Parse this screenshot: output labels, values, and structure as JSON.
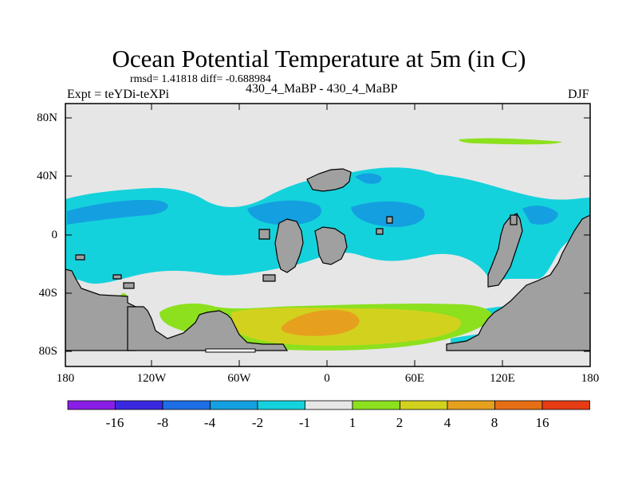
{
  "title": "Ocean Potential Temperature at 5m (in C)",
  "stats_line": "rmsd= 1.41818 diff= -0.688984",
  "left_subtitle": "Expt = teYDi-teXPi",
  "center_subtitle": "430_4_MaBP - 430_4_MaBP",
  "right_subtitle": "DJF",
  "lat_labels": [
    "80N",
    "40N",
    "0",
    "40S",
    "80S"
  ],
  "lon_labels": [
    "180",
    "120W",
    "60W",
    "0",
    "60E",
    "120E",
    "180"
  ],
  "colorbar": {
    "labels": [
      "-16",
      "-8",
      "-4",
      "-2",
      "-1",
      "1",
      "2",
      "4",
      "8",
      "16"
    ],
    "colors": [
      "#8a1ee6",
      "#3a28e0",
      "#1e6ee6",
      "#14a0e0",
      "#14d2dc",
      "#e6e6e6",
      "#8ce01e",
      "#d2d21e",
      "#e6a01e",
      "#e66e14",
      "#e63c14"
    ]
  },
  "land_color": "#a0a0a0",
  "colors": {
    "cyan": "#14d2dc",
    "blue": "#14a0e0",
    "green": "#8ce01e",
    "yellow": "#d2d21e",
    "orange": "#e6a01e",
    "neutral": "#e6e6e6"
  }
}
